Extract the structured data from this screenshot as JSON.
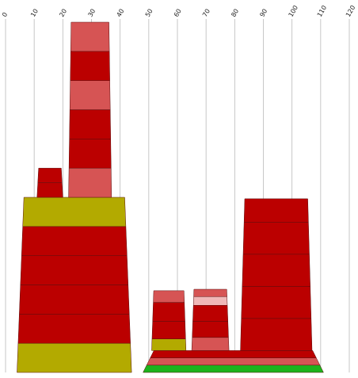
{
  "chart_data": {
    "type": "bar",
    "orientation": "stacked tapered columns",
    "x_axis": {
      "ticks": [
        0,
        10,
        20,
        30,
        40,
        50,
        60,
        70,
        80,
        90,
        100,
        110,
        120
      ],
      "range": [
        0,
        120
      ],
      "position": "top",
      "grid": true
    },
    "y_axis": {
      "range": [
        0,
        12
      ],
      "shown": false
    },
    "colors": {
      "dark_red": "#bb0000",
      "medium_red": "#d65454",
      "light_pink": "#f0b8b8",
      "olive": "#b3aa00",
      "green": "#1db31d"
    },
    "stacks": [
      {
        "x_start": 4,
        "x_end": 44,
        "segments": [
          {
            "value": 1,
            "color": "#b3aa00"
          },
          {
            "value": 1,
            "color": "#bb0000"
          },
          {
            "value": 1,
            "color": "#bb0000"
          },
          {
            "value": 1,
            "color": "#bb0000"
          },
          {
            "value": 1,
            "color": "#bb0000"
          },
          {
            "value": 1,
            "color": "#b3aa00"
          }
        ]
      },
      {
        "x_start": 11,
        "x_end": 20,
        "base": 6,
        "segments": [
          {
            "value": 0.5,
            "color": "#bb0000"
          },
          {
            "value": 0.5,
            "color": "#bb0000"
          }
        ]
      },
      {
        "x_start": 22,
        "x_end": 37,
        "base": 6,
        "segments": [
          {
            "value": 1,
            "color": "#d65454"
          },
          {
            "value": 1,
            "color": "#bb0000"
          },
          {
            "value": 1,
            "color": "#bb0000"
          },
          {
            "value": 1,
            "color": "#d65454"
          },
          {
            "value": 1,
            "color": "#bb0000"
          },
          {
            "value": 1,
            "color": "#d65454"
          }
        ]
      },
      {
        "x_start": 48,
        "x_end": 111,
        "segments": [
          {
            "value": 0.25,
            "color": "#1db31d"
          },
          {
            "value": 0.25,
            "color": "#d65454"
          },
          {
            "value": 0.25,
            "color": "#bb0000"
          }
        ]
      },
      {
        "x_start": 51,
        "x_end": 63,
        "base": 0.75,
        "segments": [
          {
            "value": 0.4,
            "color": "#b3aa00"
          },
          {
            "value": 0.6,
            "color": "#bb0000"
          },
          {
            "value": 0.65,
            "color": "#bb0000"
          },
          {
            "value": 0.4,
            "color": "#d65454"
          }
        ]
      },
      {
        "x_start": 65,
        "x_end": 78,
        "base": 0.75,
        "segments": [
          {
            "value": 0.45,
            "color": "#d65454"
          },
          {
            "value": 0.55,
            "color": "#bb0000"
          },
          {
            "value": 0.55,
            "color": "#bb0000"
          },
          {
            "value": 0.3,
            "color": "#f0b8b8"
          },
          {
            "value": 0.25,
            "color": "#d65454"
          }
        ]
      },
      {
        "x_start": 82,
        "x_end": 107,
        "base": 0.75,
        "segments": [
          {
            "value": 1.1,
            "color": "#bb0000"
          },
          {
            "value": 1.1,
            "color": "#bb0000"
          },
          {
            "value": 1.1,
            "color": "#bb0000"
          },
          {
            "value": 1.1,
            "color": "#bb0000"
          },
          {
            "value": 0.8,
            "color": "#bb0000"
          }
        ]
      }
    ]
  }
}
